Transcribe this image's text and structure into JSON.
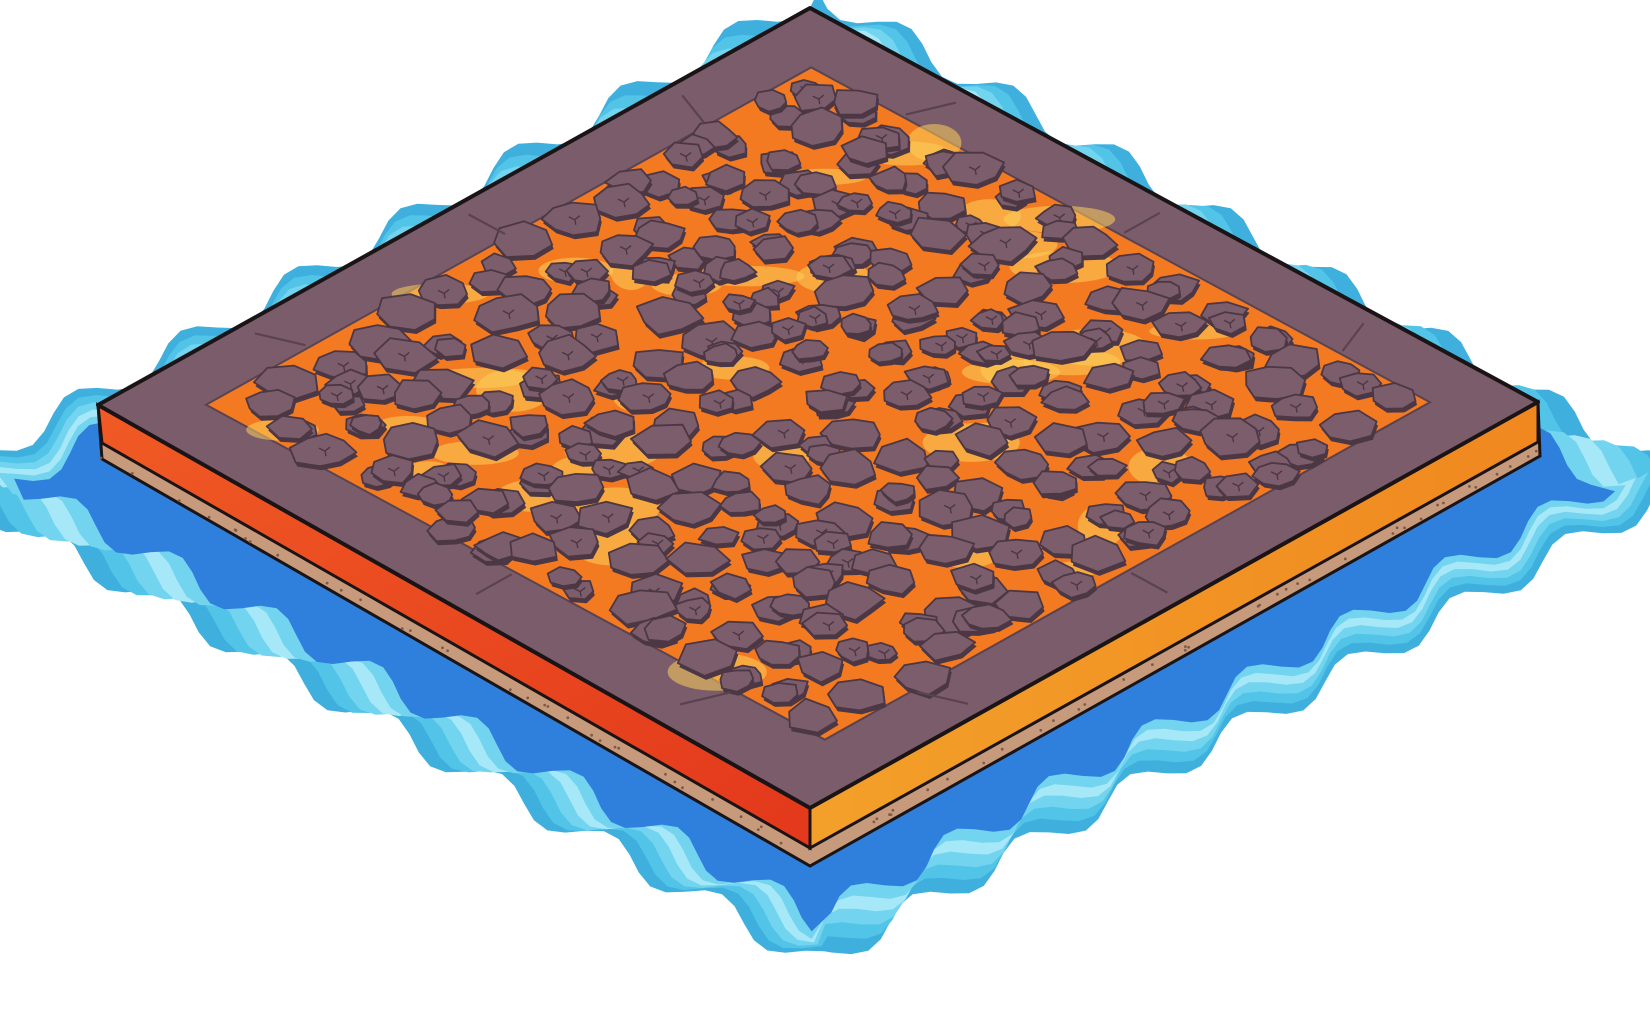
{
  "tile": {
    "kind": "isometric-lava-tile",
    "theme": "volcanic",
    "rock_grid": {
      "cols": 15,
      "rows": 15
    }
  },
  "colors": {
    "water_outer": "#3fb0de",
    "water_band_1": "#52c4e8",
    "water_band_2": "#73d4ef",
    "water_band_3": "#a6e8f8",
    "water_deep": "#2f7fdc",
    "rim_stone": "#7b5c6a",
    "rim_stone_dark": "#5a4350",
    "rock": "#7b5d6c",
    "rock_shadow": "#4c3744",
    "lava": "#f47a22",
    "lava_hot": "#fcd05a",
    "lava_deep": "#e0501c",
    "side_left": "#e8431f",
    "side_right": "#f39623",
    "soil": "#c79a7b",
    "outline": "#1a1416"
  },
  "icons": {
    "water": "water-ripple-icon",
    "lava_cracks": "lava-crack-icon"
  }
}
